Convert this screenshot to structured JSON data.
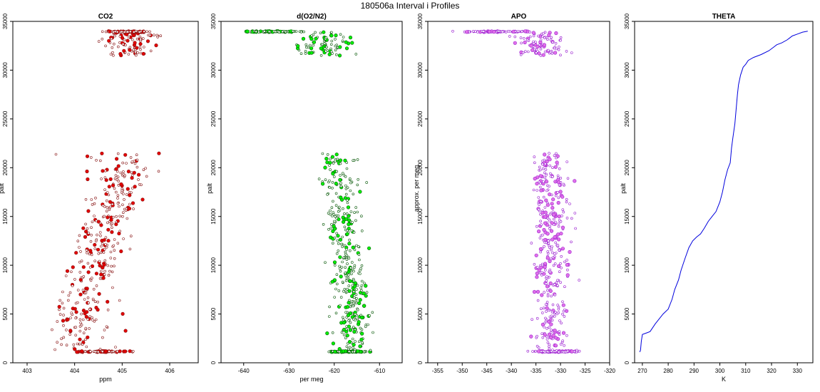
{
  "suptitle": "180506a   Interval i Profiles",
  "panels": [
    {
      "id": "co2",
      "title": "CO2",
      "xlabel": "ppm",
      "ylabel": "palt",
      "type": "scatter",
      "xlim": [
        402.7,
        406.6
      ],
      "ylim": [
        0,
        35000
      ],
      "xticks": [
        403,
        404,
        405,
        406
      ],
      "yticks": [
        0,
        5000,
        10000,
        15000,
        20000,
        25000,
        30000,
        35000
      ],
      "color": "#e00000",
      "outline": "#8b1a1a"
    },
    {
      "id": "o2n2",
      "title": "d(O2/N2)",
      "xlabel": "per meg",
      "ylabel": "palt",
      "type": "scatter",
      "xlim": [
        -645,
        -605
      ],
      "ylim": [
        0,
        35000
      ],
      "xticks": [
        -640,
        -630,
        -620,
        -610
      ],
      "yticks": [
        0,
        5000,
        10000,
        15000,
        20000,
        25000,
        30000,
        35000
      ],
      "color": "#00ee00",
      "outline": "#0a5a0a"
    },
    {
      "id": "apo",
      "title": "APO",
      "xlabel": "",
      "ylabel": "approx. per meg",
      "type": "scatter",
      "xlim": [
        -357,
        -320
      ],
      "ylim": [
        0,
        35000
      ],
      "xticks": [
        -355,
        -350,
        -345,
        -340,
        -335,
        -330,
        -325,
        -320
      ],
      "yticks": [
        0,
        5000,
        10000,
        15000,
        20000,
        25000,
        30000,
        35000
      ],
      "color": "#e070e8",
      "outline": "#9a1fd0"
    },
    {
      "id": "theta",
      "title": "THETA",
      "xlabel": "K",
      "ylabel": "palt",
      "type": "line",
      "xlim": [
        267,
        336
      ],
      "ylim": [
        0,
        35000
      ],
      "xticks": [
        270,
        280,
        290,
        300,
        310,
        320,
        330
      ],
      "yticks": [
        0,
        5000,
        10000,
        15000,
        20000,
        25000,
        30000,
        35000
      ],
      "color": "#0000dd",
      "outline": "#0000dd"
    }
  ],
  "chart_data": [
    {
      "type": "scatter",
      "title": "CO2",
      "xlabel": "ppm",
      "ylabel": "palt",
      "xlim": [
        402.7,
        406.6
      ],
      "ylim": [
        0,
        35000
      ],
      "series": [
        {
          "name": "CO2",
          "clusters": [
            {
              "y": [
                1100,
                1200
              ],
              "x": [
                403.8,
                405.3
              ],
              "n": 100
            },
            {
              "y": [
                1200,
                21500
              ],
              "x": [
                403.3,
                405.7
              ],
              "n": 380,
              "trend_x": [
                403.9,
                405.2
              ]
            },
            {
              "y": [
                31500,
                33900
              ],
              "x": [
                404.3,
                406.1
              ],
              "n": 90
            },
            {
              "y": [
                33900,
                34000
              ],
              "x": [
                404.4,
                405.7
              ],
              "n": 90
            }
          ]
        }
      ]
    },
    {
      "type": "scatter",
      "title": "d(O2/N2)",
      "xlabel": "per meg",
      "ylabel": "palt",
      "xlim": [
        -645,
        -605
      ],
      "ylim": [
        0,
        35000
      ],
      "series": [
        {
          "name": "d(O2/N2)",
          "clusters": [
            {
              "y": [
                1100,
                1200
              ],
              "x": [
                -624,
                -610
              ],
              "n": 100
            },
            {
              "y": [
                1200,
                21500
              ],
              "x": [
                -626,
                -609
              ],
              "n": 380,
              "trend_x": [
                -615,
                -620
              ]
            },
            {
              "y": [
                31500,
                33900
              ],
              "x": [
                -631,
                -613
              ],
              "n": 90
            },
            {
              "y": [
                33900,
                34000
              ],
              "x": [
                -643,
                -624
              ],
              "n": 90
            }
          ]
        }
      ]
    },
    {
      "type": "scatter",
      "title": "APO",
      "xlabel": "",
      "ylabel": "approx. per meg",
      "xlim": [
        -357,
        -320
      ],
      "ylim": [
        0,
        35000
      ],
      "series": [
        {
          "name": "APO",
          "clusters": [
            {
              "y": [
                1100,
                1200
              ],
              "x": [
                -338,
                -325
              ],
              "n": 100
            },
            {
              "y": [
                1200,
                21500
              ],
              "x": [
                -339,
                -324
              ],
              "n": 380,
              "trend_x": [
                -332,
                -332
              ]
            },
            {
              "y": [
                31500,
                33900
              ],
              "x": [
                -342,
                -326
              ],
              "n": 90
            },
            {
              "y": [
                33900,
                34000
              ],
              "x": [
                -355,
                -333
              ],
              "n": 90
            }
          ]
        }
      ]
    },
    {
      "type": "line",
      "title": "THETA",
      "xlabel": "K",
      "ylabel": "palt",
      "xlim": [
        267,
        336
      ],
      "ylim": [
        0,
        35000
      ],
      "series": [
        {
          "name": "THETA",
          "x": [
            269.0,
            269.3,
            269.6,
            270.0,
            272.0,
            273.0,
            275.0,
            278.0,
            280.0,
            281.5,
            282.5,
            284.0,
            285.0,
            286.5,
            288.0,
            289.5,
            291.0,
            292.5,
            294.0,
            295.5,
            297.0,
            298.5,
            300.0,
            301.0,
            302.0,
            303.0,
            304.0,
            304.5,
            305.0,
            305.8,
            306.3,
            306.8,
            307.2,
            308.0,
            309.0,
            310.0,
            311.0,
            313.0,
            316.0,
            319.0,
            321.0,
            322.0,
            324.0,
            326.0,
            327.0,
            328.0,
            330.0,
            332.0,
            334.0
          ],
          "y": [
            1100,
            1300,
            2200,
            2900,
            3100,
            3200,
            4000,
            5000,
            5500,
            6500,
            7500,
            8500,
            9500,
            10700,
            11800,
            12500,
            12900,
            13200,
            13800,
            14500,
            15000,
            15500,
            16500,
            17500,
            18800,
            19800,
            20500,
            22000,
            23000,
            24500,
            26000,
            27500,
            28500,
            29500,
            30300,
            30600,
            31000,
            31300,
            31600,
            32000,
            32400,
            32600,
            32800,
            33100,
            33300,
            33500,
            33700,
            33900,
            34000
          ]
        }
      ]
    }
  ]
}
